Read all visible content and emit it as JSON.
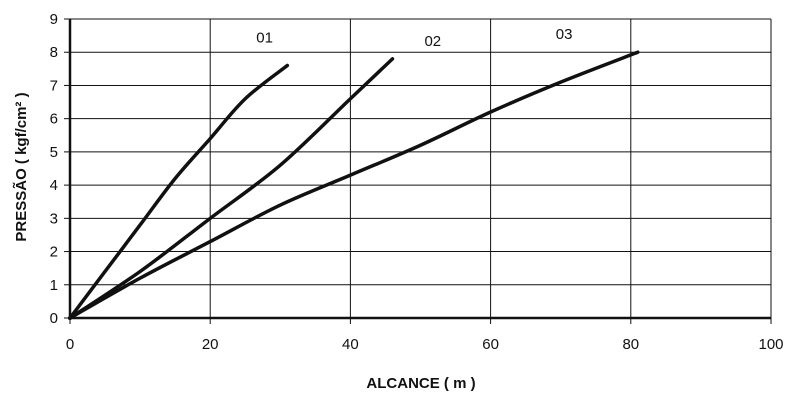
{
  "chart_data": {
    "type": "line",
    "xlabel": "ALCANCE ( m )",
    "ylabel": "PRESSÃO ( kgf/cm² )",
    "xlim": [
      0,
      100
    ],
    "ylim": [
      0,
      9
    ],
    "x_ticks": [
      "0",
      "20",
      "40",
      "60",
      "80",
      "100"
    ],
    "y_ticks": [
      "0",
      "1",
      "2",
      "3",
      "4",
      "5",
      "6",
      "7",
      "8",
      "9"
    ],
    "grid": true,
    "series": [
      {
        "name": "01",
        "x": [
          0,
          5,
          10,
          15,
          20,
          25,
          31
        ],
        "y": [
          0,
          1.4,
          2.8,
          4.2,
          5.4,
          6.6,
          7.6
        ]
      },
      {
        "name": "02",
        "x": [
          0,
          10,
          20,
          30,
          40,
          46
        ],
        "y": [
          0,
          1.4,
          3.0,
          4.6,
          6.6,
          7.8
        ]
      },
      {
        "name": "03",
        "x": [
          0,
          10,
          20,
          30,
          40,
          50,
          60,
          70,
          81
        ],
        "y": [
          0,
          1.2,
          2.3,
          3.4,
          4.3,
          5.2,
          6.2,
          7.1,
          8.0
        ]
      }
    ]
  }
}
